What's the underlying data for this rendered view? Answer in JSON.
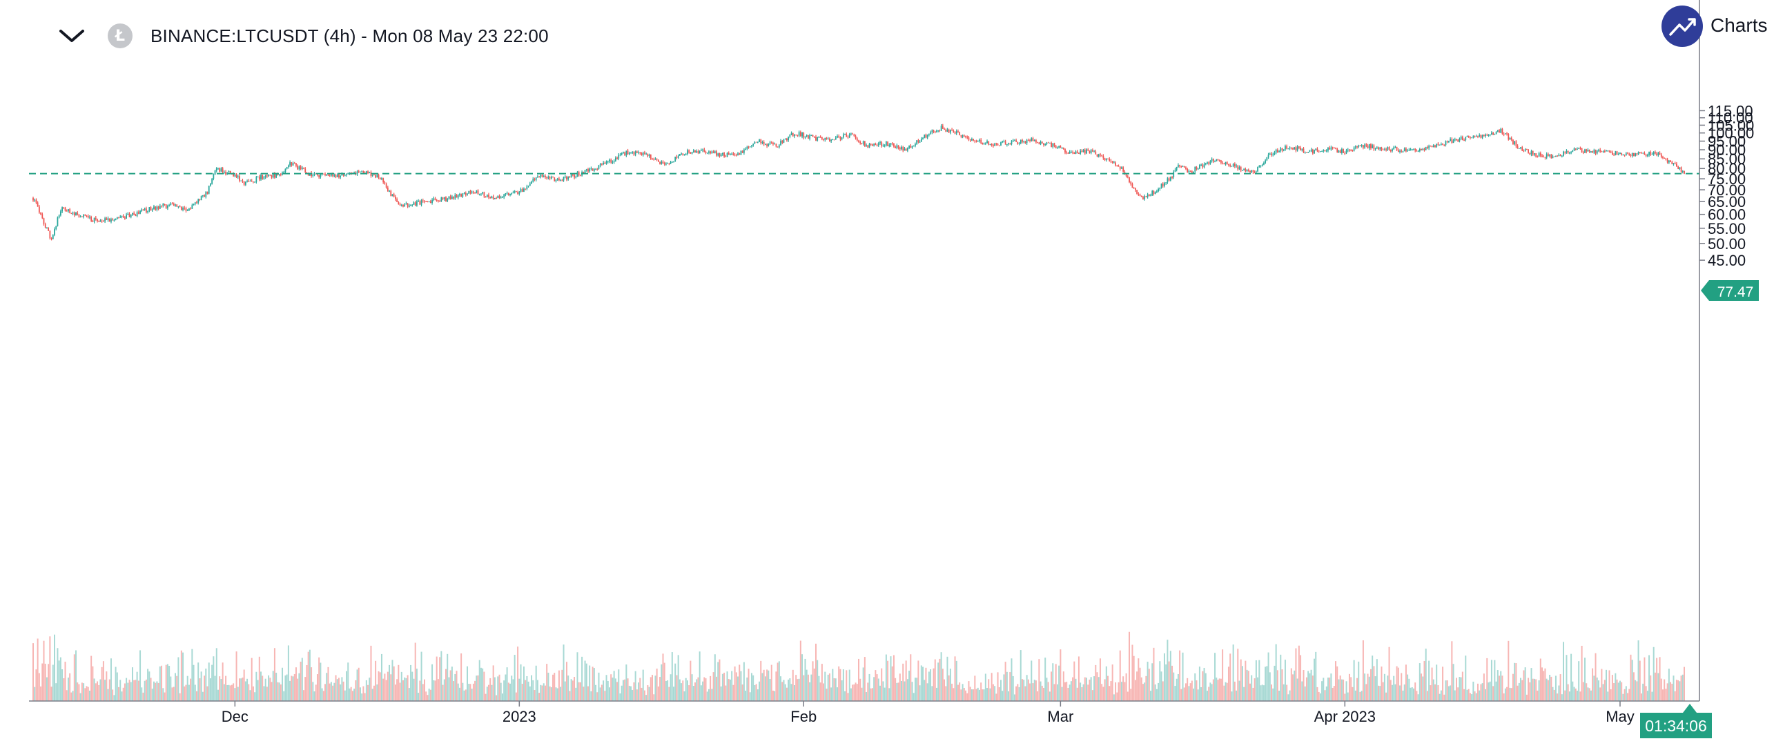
{
  "header": {
    "symbol": "BINANCE:LTCUSDT",
    "interval": "(4h)",
    "datetime": "Mon 08 May 23 22:00",
    "title": "BINANCE:LTCUSDT (4h) - Mon 08 May 23 22:00",
    "coin_glyph": "Ł",
    "collapse_icon": "chevron-down-icon"
  },
  "logo": {
    "text": "Charts p",
    "icon": "trend-up-icon",
    "color": "#2f3d99"
  },
  "colors": {
    "up": "#26a69a",
    "down": "#ef5350",
    "up_volume": "#a8d9d4",
    "down_volume": "#f7b5b3",
    "price_line": "#22a082",
    "price_label_bg": "#22a082",
    "axis_text": "#131722",
    "axis_line": "#787b86"
  },
  "price_tag": {
    "value": "77.47"
  },
  "countdown": {
    "value": "01:34:06"
  },
  "chart_data": {
    "type": "candlestick",
    "symbol": "BINANCE:LTCUSDT",
    "interval": "4h",
    "y_scale": "log",
    "y_ticks": [
      45,
      50,
      55,
      60,
      65,
      70,
      75,
      80,
      85,
      90,
      95,
      100,
      105,
      110,
      115
    ],
    "y_tick_labels": [
      "45.00",
      "50.00",
      "55.00",
      "60.00",
      "65.00",
      "70.00",
      "75.00",
      "80.00",
      "85.00",
      "90.00",
      "95.00",
      "100.00",
      "105.00",
      "110.00",
      "115.00"
    ],
    "x_ticks": [
      {
        "label": "Dec",
        "date": "2022-12-01"
      },
      {
        "label": "2023",
        "date": "2023-01-01"
      },
      {
        "label": "Feb",
        "date": "2023-02-01"
      },
      {
        "label": "Mar",
        "date": "2023-03-01"
      },
      {
        "label": "Apr 2023",
        "date": "2023-04-01"
      },
      {
        "label": "May",
        "date": "2023-05-01"
      }
    ],
    "date_range": [
      "2022-11-09",
      "2023-05-08"
    ],
    "last_price": 77.47,
    "price_path": [
      [
        "2022-11-09",
        66.5
      ],
      [
        "2022-11-10",
        58.0
      ],
      [
        "2022-11-11",
        51.0
      ],
      [
        "2022-11-12",
        62.0
      ],
      [
        "2022-11-14",
        60.0
      ],
      [
        "2022-11-16",
        57.5
      ],
      [
        "2022-11-18",
        58.5
      ],
      [
        "2022-11-20",
        60.0
      ],
      [
        "2022-11-22",
        62.5
      ],
      [
        "2022-11-24",
        63.5
      ],
      [
        "2022-11-26",
        62.0
      ],
      [
        "2022-11-28",
        69.0
      ],
      [
        "2022-11-29",
        80.0
      ],
      [
        "2022-12-01",
        76.5
      ],
      [
        "2022-12-02",
        72.5
      ],
      [
        "2022-12-04",
        76.0
      ],
      [
        "2022-12-06",
        77.0
      ],
      [
        "2022-12-07",
        83.0
      ],
      [
        "2022-12-09",
        77.5
      ],
      [
        "2022-12-12",
        76.0
      ],
      [
        "2022-12-15",
        78.5
      ],
      [
        "2022-12-17",
        75.0
      ],
      [
        "2022-12-18",
        68.0
      ],
      [
        "2022-12-19",
        63.0
      ],
      [
        "2022-12-21",
        64.5
      ],
      [
        "2022-12-24",
        66.0
      ],
      [
        "2022-12-27",
        69.5
      ],
      [
        "2022-12-29",
        66.5
      ],
      [
        "2023-01-01",
        69.0
      ],
      [
        "2023-01-02",
        71.0
      ],
      [
        "2023-01-03",
        77.0
      ],
      [
        "2023-01-05",
        74.5
      ],
      [
        "2023-01-07",
        76.5
      ],
      [
        "2023-01-09",
        80.0
      ],
      [
        "2023-01-11",
        84.0
      ],
      [
        "2023-01-13",
        89.0
      ],
      [
        "2023-01-15",
        86.5
      ],
      [
        "2023-01-17",
        82.0
      ],
      [
        "2023-01-19",
        88.5
      ],
      [
        "2023-01-21",
        89.5
      ],
      [
        "2023-01-23",
        87.0
      ],
      [
        "2023-01-25",
        88.0
      ],
      [
        "2023-01-27",
        95.0
      ],
      [
        "2023-01-29",
        92.0
      ],
      [
        "2023-01-31",
        100.0
      ],
      [
        "2023-02-02",
        97.0
      ],
      [
        "2023-02-04",
        95.5
      ],
      [
        "2023-02-06",
        99.0
      ],
      [
        "2023-02-08",
        92.0
      ],
      [
        "2023-02-10",
        93.5
      ],
      [
        "2023-02-12",
        90.0
      ],
      [
        "2023-02-14",
        97.0
      ],
      [
        "2023-02-16",
        103.5
      ],
      [
        "2023-02-18",
        99.0
      ],
      [
        "2023-02-20",
        95.0
      ],
      [
        "2023-02-22",
        93.0
      ],
      [
        "2023-02-24",
        94.5
      ],
      [
        "2023-02-26",
        95.5
      ],
      [
        "2023-02-28",
        93.0
      ],
      [
        "2023-03-02",
        88.0
      ],
      [
        "2023-03-04",
        89.5
      ],
      [
        "2023-03-06",
        85.0
      ],
      [
        "2023-03-08",
        78.5
      ],
      [
        "2023-03-09",
        70.0
      ],
      [
        "2023-03-10",
        66.0
      ],
      [
        "2023-03-11",
        68.5
      ],
      [
        "2023-03-13",
        75.5
      ],
      [
        "2023-03-14",
        82.0
      ],
      [
        "2023-03-15",
        78.0
      ],
      [
        "2023-03-16",
        80.5
      ],
      [
        "2023-03-18",
        85.0
      ],
      [
        "2023-03-20",
        81.0
      ],
      [
        "2023-03-22",
        78.0
      ],
      [
        "2023-03-24",
        88.0
      ],
      [
        "2023-03-26",
        92.0
      ],
      [
        "2023-03-28",
        88.5
      ],
      [
        "2023-03-30",
        90.5
      ],
      [
        "2023-04-01",
        89.0
      ],
      [
        "2023-04-03",
        92.5
      ],
      [
        "2023-04-05",
        91.0
      ],
      [
        "2023-04-07",
        90.0
      ],
      [
        "2023-04-09",
        89.5
      ],
      [
        "2023-04-11",
        92.5
      ],
      [
        "2023-04-13",
        96.0
      ],
      [
        "2023-04-16",
        98.0
      ],
      [
        "2023-04-18",
        101.5
      ],
      [
        "2023-04-20",
        91.0
      ],
      [
        "2023-04-22",
        87.0
      ],
      [
        "2023-04-24",
        86.5
      ],
      [
        "2023-04-26",
        90.0
      ],
      [
        "2023-04-28",
        89.0
      ],
      [
        "2023-04-30",
        88.5
      ],
      [
        "2023-05-02",
        87.0
      ],
      [
        "2023-05-04",
        88.0
      ],
      [
        "2023-05-05",
        87.5
      ],
      [
        "2023-05-07",
        82.0
      ],
      [
        "2023-05-08",
        77.47
      ]
    ]
  }
}
